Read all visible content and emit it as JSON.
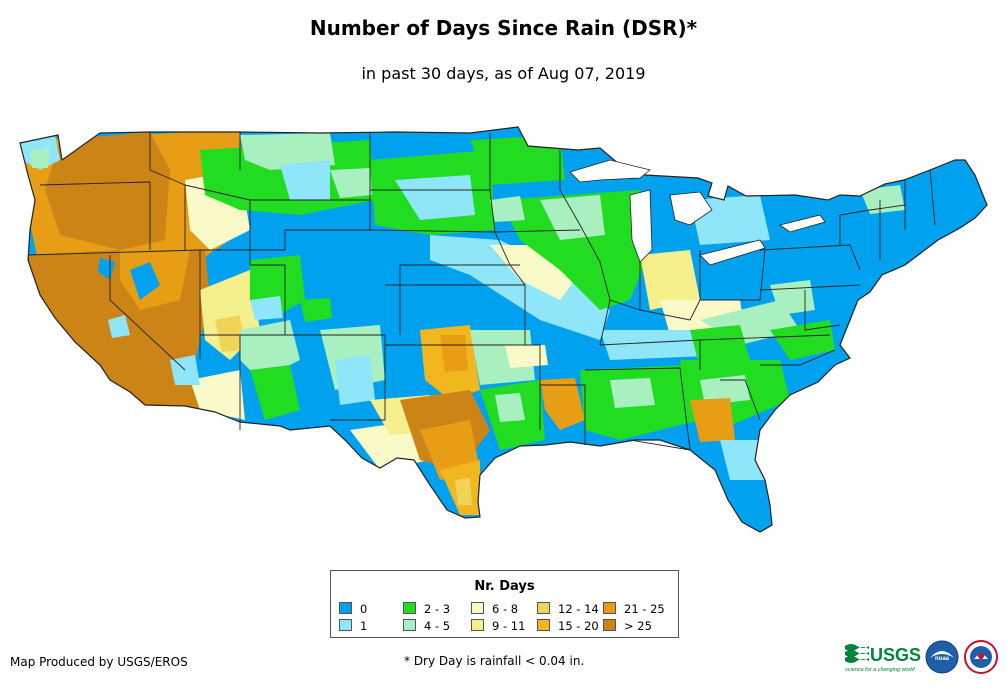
{
  "title": "Number of Days Since Rain (DSR)*",
  "subtitle": "in past 30 days, as of Aug 07, 2019",
  "legend": {
    "title": "Nr. Days",
    "items": [
      {
        "label": "0",
        "color": "#00a2f0"
      },
      {
        "label": "1",
        "color": "#8fe6f8"
      },
      {
        "label": "2 - 3",
        "color": "#22dc22"
      },
      {
        "label": "4 - 5",
        "color": "#a8f0c0"
      },
      {
        "label": "6 - 8",
        "color": "#fafac8"
      },
      {
        "label": "9 - 11",
        "color": "#f5f08c"
      },
      {
        "label": "12 - 14",
        "color": "#f2d35a"
      },
      {
        "label": "15 - 20",
        "color": "#f2b61e"
      },
      {
        "label": "21 - 25",
        "color": "#e89e14"
      },
      {
        "label": "> 25",
        "color": "#cc8416"
      }
    ]
  },
  "footer": {
    "producer": "Map Produced by USGS/EROS",
    "footnote": "* Dry Day is rainfall < 0.04 in."
  },
  "logos": {
    "usgs": "USGS",
    "usgs_tagline": "science for a changing world",
    "noaa": "noaa",
    "nws": "NATIONAL WEATHER SERVICE"
  },
  "colors": {
    "state_border": "#222222",
    "background": "#ffffff",
    "usgs_green": "#00843d",
    "noaa_blue": "#1e5fa8"
  }
}
